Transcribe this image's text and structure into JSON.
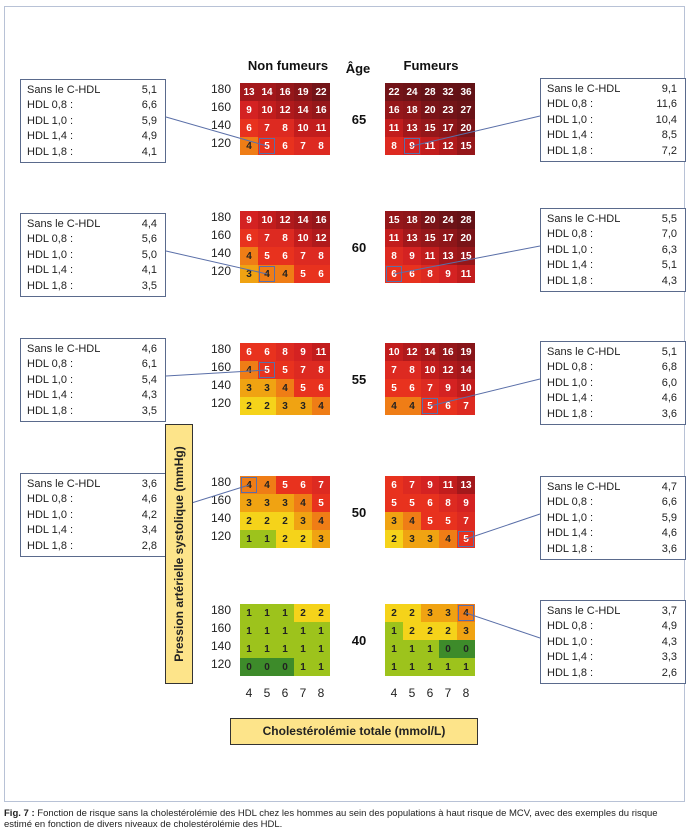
{
  "headers": {
    "nonsmokers": "Non fumeurs",
    "age": "Âge",
    "smokers": "Fumeurs"
  },
  "axes": {
    "ylabel": "Pression artérielle systolique (mmHg)",
    "xlabel": "Cholestérolémie totale (mmol/L)",
    "sbp_levels": [
      "180",
      "160",
      "140",
      "120"
    ],
    "chol_levels": [
      "4",
      "5",
      "6",
      "7",
      "8"
    ]
  },
  "colors": {
    "0": "#3d8b2a",
    "1": "#9dc31c",
    "2": "#f5d31a",
    "3": "#f0a312",
    "4": "#ef7d16",
    "5": "#e8321e",
    "6": "#e8321e",
    "7": "#dd2a21",
    "8": "#dd2a21",
    "9": "#d42222",
    "10": "#c21d1d",
    "11": "#c21d1d",
    "12": "#b01a1c",
    "13": "#a3181b",
    "14": "#a3181b",
    "15": "#95171a",
    "16": "#95171a",
    "17": "#8e1619",
    "18": "#8e1619",
    "19": "#871519",
    "20": "#7a1418",
    "22": "#731418",
    "23": "#731418",
    "24": "#6d1317",
    "27": "#6a1317",
    "28": "#651216",
    "32": "#651216",
    "36": "#621216",
    "box_border": "#5a6a8c",
    "axis_label_bg": "#fde48a"
  },
  "chart_data": {
    "type": "heatmap",
    "title": "",
    "rows": [
      "180",
      "160",
      "140",
      "120"
    ],
    "columns": [
      "4",
      "5",
      "6",
      "7",
      "8"
    ],
    "xlabel": "Cholestérolémie totale (mmol/L)",
    "ylabel": "Pression artérielle systolique (mmHg)",
    "groups": [
      {
        "age": "65",
        "nonsmokers": [
          [
            13,
            14,
            16,
            19,
            22
          ],
          [
            9,
            10,
            12,
            14,
            16
          ],
          [
            6,
            7,
            8,
            10,
            11
          ],
          [
            4,
            5,
            6,
            7,
            8
          ]
        ],
        "smokers": [
          [
            22,
            24,
            28,
            32,
            36
          ],
          [
            16,
            18,
            20,
            23,
            27
          ],
          [
            11,
            13,
            15,
            17,
            20
          ],
          [
            8,
            9,
            11,
            12,
            15
          ]
        ],
        "hl_non": [
          3,
          1
        ],
        "hl_smo": [
          3,
          1
        ]
      },
      {
        "age": "60",
        "nonsmokers": [
          [
            9,
            10,
            12,
            14,
            16
          ],
          [
            6,
            7,
            8,
            10,
            12
          ],
          [
            4,
            5,
            6,
            7,
            8
          ],
          [
            3,
            4,
            4,
            5,
            6
          ]
        ],
        "smokers": [
          [
            15,
            18,
            20,
            24,
            28
          ],
          [
            11,
            13,
            15,
            17,
            20
          ],
          [
            8,
            9,
            11,
            13,
            15
          ],
          [
            6,
            6,
            8,
            9,
            11
          ]
        ],
        "hl_non": [
          3,
          1
        ],
        "hl_smo": [
          3,
          0
        ]
      },
      {
        "age": "55",
        "nonsmokers": [
          [
            6,
            6,
            8,
            9,
            11
          ],
          [
            4,
            5,
            5,
            7,
            8
          ],
          [
            3,
            3,
            4,
            5,
            6
          ],
          [
            2,
            2,
            3,
            3,
            4
          ]
        ],
        "smokers": [
          [
            10,
            12,
            14,
            16,
            19
          ],
          [
            7,
            8,
            10,
            12,
            14
          ],
          [
            5,
            6,
            7,
            9,
            10
          ],
          [
            4,
            4,
            5,
            6,
            7
          ]
        ],
        "hl_non": [
          1,
          1
        ],
        "hl_smo": [
          3,
          2
        ]
      },
      {
        "age": "50",
        "nonsmokers": [
          [
            4,
            4,
            5,
            6,
            7
          ],
          [
            3,
            3,
            3,
            4,
            5
          ],
          [
            2,
            2,
            2,
            3,
            4
          ],
          [
            1,
            1,
            2,
            2,
            3
          ]
        ],
        "smokers": [
          [
            6,
            7,
            9,
            11,
            13
          ],
          [
            5,
            5,
            6,
            8,
            9
          ],
          [
            3,
            4,
            5,
            5,
            7
          ],
          [
            2,
            3,
            3,
            4,
            5
          ]
        ],
        "hl_non": [
          0,
          0
        ],
        "hl_smo": [
          3,
          4
        ]
      },
      {
        "age": "40",
        "nonsmokers": [
          [
            1,
            1,
            1,
            2,
            2
          ],
          [
            1,
            1,
            1,
            1,
            1
          ],
          [
            1,
            1,
            1,
            1,
            1
          ],
          [
            0,
            0,
            0,
            1,
            1
          ]
        ],
        "smokers": [
          [
            2,
            2,
            3,
            3,
            4
          ],
          [
            1,
            2,
            2,
            2,
            3
          ],
          [
            1,
            1,
            1,
            0,
            0
          ],
          [
            1,
            1,
            1,
            1,
            1
          ]
        ],
        "hl_non": null,
        "hl_smo": [
          0,
          4
        ]
      }
    ]
  },
  "boxes": {
    "left": [
      {
        "rows": [
          [
            "Sans le C-HDL",
            "5,1"
          ],
          [
            "HDL 0,8 :",
            "6,6"
          ],
          [
            "HDL 1,0 :",
            "5,9"
          ],
          [
            "HDL 1,4 :",
            "4,9"
          ],
          [
            "HDL 1,8 :",
            "4,1"
          ]
        ]
      },
      {
        "rows": [
          [
            "Sans le C-HDL",
            "4,4"
          ],
          [
            "HDL 0,8 :",
            "5,6"
          ],
          [
            "HDL 1,0 :",
            "5,0"
          ],
          [
            "HDL 1,4 :",
            "4,1"
          ],
          [
            "HDL 1,8 :",
            "3,5"
          ]
        ]
      },
      {
        "rows": [
          [
            "Sans le C-HDL",
            "4,6"
          ],
          [
            "HDL 0,8 :",
            "6,1"
          ],
          [
            "HDL 1,0 :",
            "5,4"
          ],
          [
            "HDL 1,4 :",
            "4,3"
          ],
          [
            "HDL 1,8 :",
            "3,5"
          ]
        ]
      },
      {
        "rows": [
          [
            "Sans le C-HDL",
            "3,6"
          ],
          [
            "HDL 0,8 :",
            "4,6"
          ],
          [
            "HDL 1,0 :",
            "4,2"
          ],
          [
            "HDL 1,4 :",
            "3,4"
          ],
          [
            "HDL 1,8 :",
            "2,8"
          ]
        ]
      }
    ],
    "right": [
      {
        "rows": [
          [
            "Sans le C-HDL",
            "9,1"
          ],
          [
            "HDL 0,8 :",
            "11,6"
          ],
          [
            "HDL 1,0 :",
            "10,4"
          ],
          [
            "HDL 1,4 :",
            "8,5"
          ],
          [
            "HDL 1,8 :",
            "7,2"
          ]
        ]
      },
      {
        "rows": [
          [
            "Sans le C-HDL",
            "5,5"
          ],
          [
            "HDL 0,8 :",
            "7,0"
          ],
          [
            "HDL 1,0 :",
            "6,3"
          ],
          [
            "HDL 1,4 :",
            "5,1"
          ],
          [
            "HDL 1,8 :",
            "4,3"
          ]
        ]
      },
      {
        "rows": [
          [
            "Sans le C-HDL",
            "5,1"
          ],
          [
            "HDL 0,8 :",
            "6,8"
          ],
          [
            "HDL 1,0 :",
            "6,0"
          ],
          [
            "HDL 1,4 :",
            "4,6"
          ],
          [
            "HDL 1,8 :",
            "3,6"
          ]
        ]
      },
      {
        "rows": [
          [
            "Sans le C-HDL",
            "4,7"
          ],
          [
            "HDL 0,8 :",
            "6,6"
          ],
          [
            "HDL 1,0 :",
            "5,9"
          ],
          [
            "HDL 1,4 :",
            "4,6"
          ],
          [
            "HDL 1,8 :",
            "3,6"
          ]
        ]
      },
      {
        "rows": [
          [
            "Sans le C-HDL",
            "3,7"
          ],
          [
            "HDL 0,8 :",
            "4,9"
          ],
          [
            "HDL 1,0 :",
            "4,3"
          ],
          [
            "HDL 1,4 :",
            "3,3"
          ],
          [
            "HDL 1,8 :",
            "2,6"
          ]
        ]
      }
    ]
  },
  "caption": {
    "label": "Fig. 7 :",
    "text": "Fonction de risque sans la cholestérolémie des HDL chez les hommes au sein des populations à haut risque de MCV, avec des exemples du risque estimé en fonction de divers niveaux de cholestérolémie des HDL."
  }
}
